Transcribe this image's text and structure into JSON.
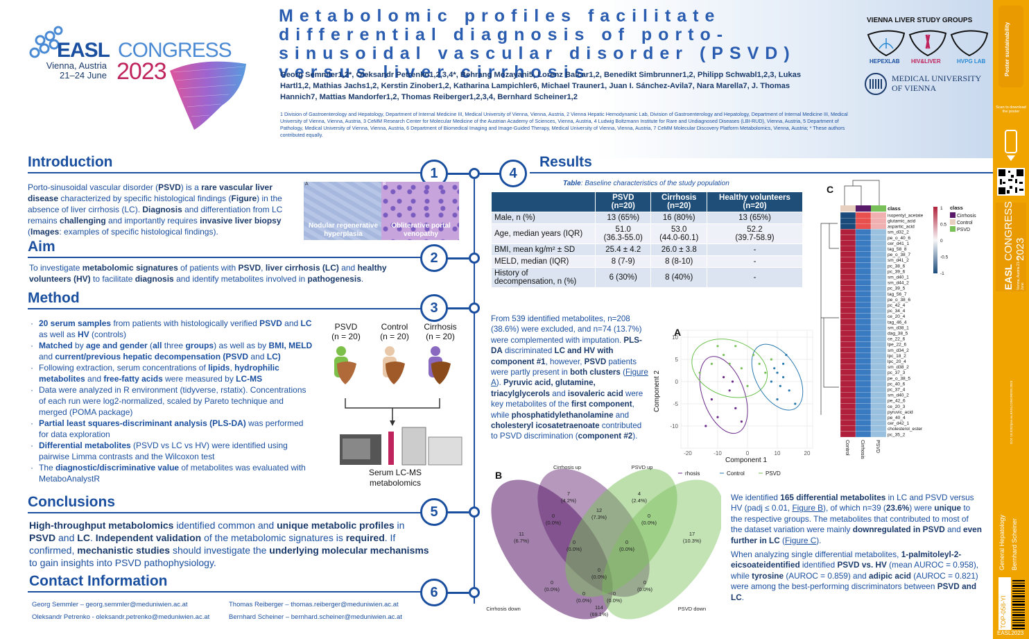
{
  "header": {
    "logo_easl": "EASL",
    "logo_congress": "CONGRESS",
    "city": "Vienna, Austria",
    "dates": "21–24 June",
    "year": "2023",
    "title": "Metabolomic profiles facilitate differential diagnosis of porto-sinusoidal vascular disorder (PSVD) versus liver cirrhosis",
    "authors": "Georg Semmler1,2*, Oleksandr Petrenko1,2,3,4*, Behrang Mozayani5, Lorenz Balcar1,2, Benedikt Simbrunner1,2, Philipp Schwabl1,2,3, Lukas Hartl1,2, Mathias Jachs1,2, Kerstin Zinober1,2, Katharina Lampichler6, Michael Trauner1, Juan I. Sánchez-Avila7, Nara Marella7, J. Thomas Hannich7, Mattias Mandorfer1,2, Thomas Reiberger1,2,3,4, Bernhard Scheiner1,2",
    "affiliations": "1 Division of Gastroenterology and Hepatology, Department of Internal Medicine III, Medical University of Vienna, Vienna, Austria, 2 Vienna Hepatic Hemodynamic Lab, Division of Gastroenterology and Hepatology, Department of Internal Medicine III, Medical University of Vienna, Vienna, Austria, 3 CeMM Research Center for Molecular Medicine of the Austrian Academy of Sciences, Vienna, Austria, 4 Ludwig Boltzmann Institute for Rare and Undiagnosed Diseases (LBI-RUD), Vienna, Austria, 5 Department of Pathology, Medical University of Vienna, Vienna, Austria, 6 Department of Biomedical Imaging and Image-Guided Therapy, Medical University of Vienna, Vienna, Austria, 7 CeMM Molecular Discovery Platform Metabolomics, Vienna, Austria; * These authors contributed equally.",
    "vienna_groups": "VIENNA LIVER STUDY GROUPS",
    "hepexlab": "HEPEXLAB",
    "hivliver": "HIV&LIVER",
    "hvpglab": "HVPG LAB",
    "meduni_1": "MEDICAL UNIVERSITY",
    "meduni_2": "OF VIENNA"
  },
  "sidebar": {
    "poster": "Poster sustainability",
    "scan": "Scan to download the poster",
    "congress": "CONGRESS 2023",
    "easl": "EASL",
    "venue": "Vienna, Austria 21–24 June",
    "topic1": "General Hepatology",
    "topic2": "Bernhard Scheiner",
    "code": "TOP-058-YI",
    "tag": "EASL2023",
    "doi": "DOI: 10.3252/pso.eu.EASLCONGRESS.2023"
  },
  "sections": {
    "introduction": "Introduction",
    "aim": "Aim",
    "method": "Method",
    "conclusions": "Conclusions",
    "contact": "Contact Information",
    "results": "Results",
    "n1": "1",
    "n2": "2",
    "n3": "3",
    "n4": "4",
    "n5": "5",
    "n6": "6"
  },
  "intro": {
    "img1": "Nodular regenerative hyperplasia",
    "img2": "Obliterative portal venopathy",
    "tagA": "A",
    "tagB": "B"
  },
  "aim": {},
  "method": {
    "fig_psvd": "PSVD",
    "fig_psvd_n": "(n = 20)",
    "fig_control": "Control",
    "fig_control_n": "(n = 20)",
    "fig_cirrhosis": "Cirrhosis",
    "fig_cirrhosis_n": "(n = 20)",
    "fig_lcms1": "Serum LC-MS",
    "fig_lcms2": "metabolomics"
  },
  "contact": {
    "c1": "Georg Semmler – georg.semmler@meduniwien.ac.at",
    "c2": "Oleksandr Petrenko - oleksandr.petrenko@meduniwien.ac.at",
    "c3": "Thomas Reiberger – thomas.reiberger@meduniwien.ac.at",
    "c4": "Bernhard Scheiner – bernhard.scheiner@meduniwien.ac.at"
  },
  "table": {
    "caption": "Baseline characteristics of the study population",
    "caption_prefix": "Table",
    "headers": [
      [
        "",
        ""
      ],
      [
        "PSVD",
        "(n=20)"
      ],
      [
        "Cirrhosis",
        "(n=20)"
      ],
      [
        "Healthy volunteers",
        "(n=20)"
      ]
    ],
    "rows": [
      [
        "Male, n (%)",
        "13 (65%)",
        "16 (80%)",
        "13 (65%)"
      ],
      [
        "Age, median years (IQR)",
        "51.0\n(36.3-55.0)",
        "53.0\n(44.0-60.1)",
        "52.2\n(39.7-58.9)"
      ],
      [
        "BMI, mean kg/m² ± SD",
        "25.4 ± 4.2",
        "26.0 ± 3.8",
        "-"
      ],
      [
        "MELD, median (IQR)",
        "8 (7-9)",
        "8 (8-10)",
        "-"
      ],
      [
        "History of\ndecompensation, n (%)",
        "6 (30%)",
        "8 (40%)",
        "-"
      ]
    ]
  },
  "plsda": {
    "label": "A",
    "xlabel": "Component 1",
    "ylabel": "Component 2",
    "xticks": [
      "-20",
      "-10",
      "0",
      "10",
      "20"
    ],
    "yticks": [
      "10",
      "5",
      "0",
      "-5",
      "-10"
    ],
    "legend": [
      "rhosis",
      "Control",
      "PSVD"
    ]
  },
  "venn": {
    "label": "B",
    "labels": [
      "Cirrhosis up",
      "PSVD up",
      "Cirrhosis down",
      "PSVD down"
    ],
    "regions": [
      [
        "7",
        "(4.2%)"
      ],
      [
        "4",
        "(2.4%)"
      ],
      [
        "0",
        "(0.0%)"
      ],
      [
        "12",
        "(7.3%)"
      ],
      [
        "0",
        "(0.0%)"
      ],
      [
        "11",
        "(6.7%)"
      ],
      [
        "17",
        "(10.3%)"
      ],
      [
        "0",
        "(0.0%)"
      ],
      [
        "0",
        "(0.0%)"
      ],
      [
        "0",
        "(0.0%)"
      ],
      [
        "0",
        "(0.0%)"
      ],
      [
        "0",
        "(0.0%)"
      ],
      [
        "0",
        "(0.0%)"
      ],
      [
        "0",
        "(0.0%)"
      ],
      [
        "114",
        "(69.1%)"
      ]
    ]
  },
  "heatmap": {
    "label": "C",
    "col_labels": [
      "Control",
      "Cirrhosis",
      "PSVD"
    ],
    "class_title": "class",
    "legend_title": "class",
    "legend_items": [
      "Cirrhosis",
      "Control",
      "PSVD"
    ],
    "scale": [
      "1",
      "0.5",
      "0",
      "-0.5",
      "-1"
    ],
    "rows": [
      "isopentyl_acetate",
      "glutamic_acid",
      "aspartic_acid",
      "sm_d32_2",
      "pe_o_40_6",
      "cer_d41_1",
      "tag_58_8",
      "pe_o_38_7",
      "sm_d41_2",
      "pc_38_6",
      "pc_39_6",
      "sm_d40_1",
      "sm_d44_2",
      "pc_39_5",
      "tag_56_7",
      "pe_o_38_6",
      "pc_42_4",
      "pc_34_4",
      "ce_20_4",
      "tag_46_4",
      "sm_d38_1",
      "dag_38_5",
      "ce_22_6",
      "lpe_22_6",
      "sm_d34_2",
      "lpc_18_2",
      "lpc_20_4",
      "sm_d38_2",
      "pc_37_3",
      "pe_o_38_5",
      "pc_40_6",
      "pc_37_4",
      "sm_d40_2",
      "pe_42_6",
      "ce_20_3",
      "pyruvic_acid",
      "pe_40_4",
      "cer_d42_1",
      "cholesterol_ester",
      "pc_35_2"
    ]
  },
  "colors": {
    "primary": "#1a4fa0",
    "dark": "#1a3a6b",
    "accent": "#c0245c",
    "sidebar": "#f0a400",
    "table_header": "#1f4e79"
  }
}
